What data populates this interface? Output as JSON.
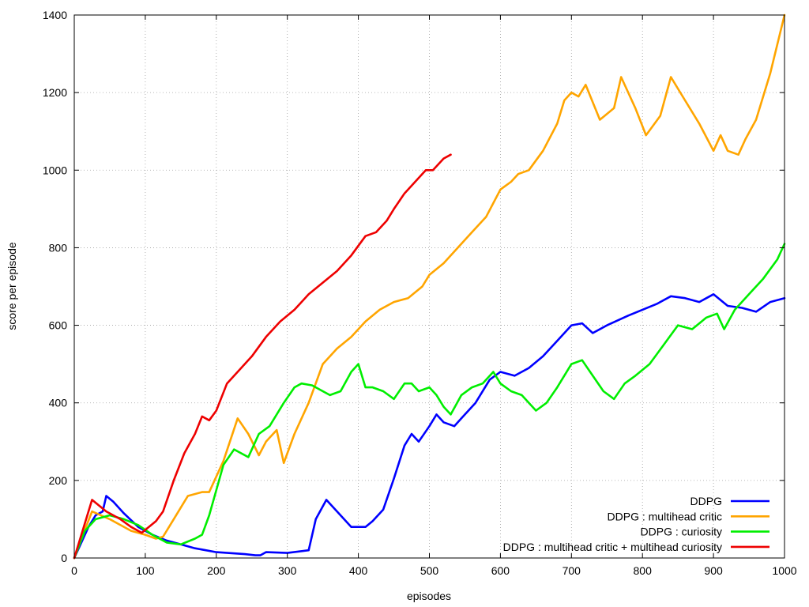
{
  "chart_data": {
    "type": "line",
    "xlabel": "episodes",
    "ylabel": "score per episode",
    "xlim": [
      0,
      1000
    ],
    "ylim": [
      0,
      1400
    ],
    "x_ticks": [
      0,
      100,
      200,
      300,
      400,
      500,
      600,
      700,
      800,
      900,
      1000
    ],
    "y_ticks": [
      0,
      200,
      400,
      600,
      800,
      1000,
      1200,
      1400
    ],
    "grid": true,
    "legend_position": "bottom-right",
    "series": [
      {
        "name": "DDPG",
        "color": "#0000ff",
        "x": [
          0,
          10,
          20,
          30,
          40,
          45,
          55,
          70,
          90,
          110,
          130,
          150,
          170,
          200,
          240,
          255,
          262,
          270,
          300,
          330,
          340,
          355,
          370,
          390,
          410,
          420,
          435,
          450,
          465,
          475,
          485,
          500,
          510,
          520,
          535,
          545,
          565,
          585,
          600,
          620,
          640,
          660,
          680,
          700,
          715,
          730,
          750,
          780,
          800,
          820,
          840,
          860,
          880,
          900,
          920,
          940,
          960,
          980,
          1000
        ],
        "values": [
          0,
          40,
          80,
          110,
          120,
          160,
          145,
          115,
          80,
          60,
          45,
          35,
          25,
          15,
          10,
          7,
          7,
          15,
          13,
          20,
          100,
          150,
          120,
          80,
          80,
          95,
          125,
          205,
          290,
          320,
          300,
          340,
          370,
          350,
          340,
          360,
          400,
          460,
          480,
          470,
          490,
          520,
          560,
          600,
          605,
          580,
          600,
          625,
          640,
          655,
          675,
          670,
          660,
          680,
          650,
          645,
          635,
          660,
          670
        ]
      },
      {
        "name": "DDPG : multihead critic",
        "color": "#ffa500",
        "x": [
          0,
          10,
          25,
          50,
          80,
          100,
          115,
          125,
          140,
          160,
          180,
          190,
          210,
          230,
          245,
          260,
          270,
          285,
          295,
          310,
          330,
          350,
          370,
          390,
          410,
          430,
          450,
          470,
          490,
          500,
          520,
          540,
          560,
          580,
          600,
          615,
          625,
          640,
          660,
          680,
          690,
          700,
          710,
          720,
          740,
          760,
          770,
          790,
          805,
          825,
          840,
          860,
          880,
          900,
          910,
          920,
          935,
          945,
          960,
          980,
          1000
        ],
        "values": [
          0,
          50,
          120,
          100,
          70,
          60,
          50,
          55,
          100,
          160,
          170,
          170,
          250,
          360,
          320,
          265,
          300,
          330,
          245,
          320,
          400,
          500,
          540,
          570,
          610,
          640,
          660,
          670,
          700,
          730,
          760,
          800,
          840,
          880,
          950,
          970,
          990,
          1000,
          1050,
          1120,
          1180,
          1200,
          1190,
          1220,
          1130,
          1160,
          1240,
          1160,
          1090,
          1140,
          1240,
          1180,
          1120,
          1050,
          1090,
          1050,
          1040,
          1080,
          1130,
          1250,
          1400
        ]
      },
      {
        "name": "DDPG : curiosity",
        "color": "#00ee00",
        "x": [
          0,
          15,
          30,
          50,
          70,
          90,
          110,
          130,
          150,
          170,
          180,
          190,
          210,
          225,
          245,
          260,
          275,
          295,
          310,
          320,
          335,
          350,
          360,
          375,
          390,
          400,
          410,
          420,
          435,
          450,
          465,
          475,
          485,
          500,
          510,
          520,
          530,
          545,
          560,
          575,
          590,
          600,
          615,
          630,
          650,
          665,
          680,
          700,
          715,
          730,
          745,
          760,
          775,
          790,
          810,
          830,
          850,
          870,
          890,
          905,
          915,
          930,
          950,
          970,
          990,
          1000
        ],
        "values": [
          0,
          70,
          100,
          110,
          100,
          85,
          60,
          40,
          35,
          50,
          60,
          110,
          240,
          280,
          260,
          320,
          340,
          400,
          440,
          450,
          445,
          430,
          420,
          430,
          480,
          500,
          440,
          440,
          430,
          410,
          450,
          450,
          430,
          440,
          420,
          390,
          370,
          420,
          440,
          450,
          480,
          450,
          430,
          420,
          380,
          400,
          440,
          500,
          510,
          470,
          430,
          410,
          450,
          470,
          500,
          550,
          600,
          590,
          620,
          630,
          590,
          640,
          680,
          720,
          770,
          810
        ]
      },
      {
        "name": "DDPG : multihead critic + multihead curiosity",
        "color": "#ee0000",
        "x": [
          0,
          10,
          25,
          45,
          65,
          80,
          95,
          105,
          115,
          125,
          140,
          155,
          170,
          180,
          190,
          200,
          215,
          230,
          250,
          270,
          290,
          310,
          330,
          350,
          370,
          390,
          410,
          425,
          440,
          450,
          465,
          480,
          495,
          505,
          520,
          530
        ],
        "values": [
          0,
          60,
          150,
          120,
          100,
          80,
          65,
          80,
          95,
          120,
          200,
          270,
          320,
          365,
          355,
          380,
          450,
          480,
          520,
          570,
          610,
          640,
          680,
          710,
          740,
          780,
          830,
          840,
          870,
          900,
          940,
          970,
          1000,
          1000,
          1030,
          1040
        ]
      }
    ]
  }
}
